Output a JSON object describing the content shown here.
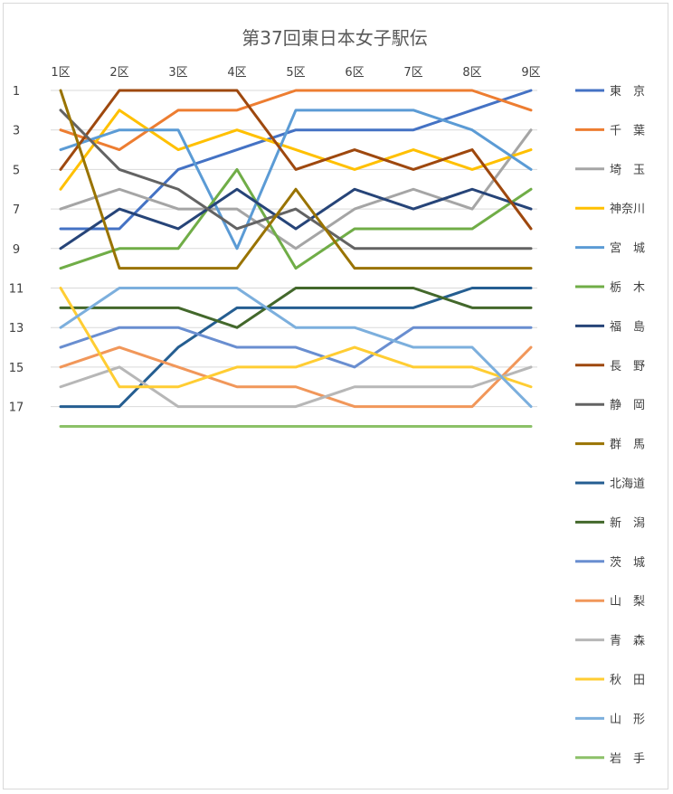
{
  "chart_data": {
    "type": "line",
    "title": "第37回東日本女子駅伝",
    "categories": [
      "1区",
      "2区",
      "3区",
      "4区",
      "5区",
      "6区",
      "7区",
      "8区",
      "9区"
    ],
    "y_ticks": [
      "1",
      "3",
      "5",
      "7",
      "9",
      "11",
      "13",
      "15",
      "17"
    ],
    "ylim": [
      1,
      18
    ],
    "y_reversed": true,
    "grid": true,
    "legend_position": "right",
    "series": [
      {
        "name": "東　京",
        "color": "#4472C4",
        "values": [
          8,
          8,
          5,
          4,
          3,
          3,
          3,
          2,
          1
        ]
      },
      {
        "name": "千　葉",
        "color": "#ED7D31",
        "values": [
          3,
          4,
          2,
          2,
          1,
          1,
          1,
          1,
          2
        ]
      },
      {
        "name": "埼　玉",
        "color": "#A5A5A5",
        "values": [
          7,
          6,
          7,
          7,
          9,
          7,
          6,
          7,
          3
        ]
      },
      {
        "name": "神奈川",
        "color": "#FFC000",
        "values": [
          6,
          2,
          4,
          3,
          4,
          5,
          4,
          5,
          4
        ]
      },
      {
        "name": "宮　城",
        "color": "#5B9BD5",
        "values": [
          4,
          3,
          3,
          9,
          2,
          2,
          2,
          3,
          5
        ]
      },
      {
        "name": "栃　木",
        "color": "#70AD47",
        "values": [
          10,
          9,
          9,
          5,
          10,
          8,
          8,
          8,
          6
        ]
      },
      {
        "name": "福　島",
        "color": "#264478",
        "values": [
          9,
          7,
          8,
          6,
          8,
          6,
          7,
          6,
          7
        ]
      },
      {
        "name": "長　野",
        "color": "#9E480E",
        "values": [
          5,
          1,
          1,
          1,
          5,
          4,
          5,
          4,
          8
        ]
      },
      {
        "name": "静　岡",
        "color": "#636363",
        "values": [
          2,
          5,
          6,
          8,
          7,
          9,
          9,
          9,
          9
        ]
      },
      {
        "name": "群　馬",
        "color": "#997300",
        "values": [
          1,
          10,
          10,
          10,
          6,
          10,
          10,
          10,
          10
        ]
      },
      {
        "name": "北海道",
        "color": "#255E91",
        "values": [
          17,
          17,
          14,
          12,
          12,
          12,
          12,
          11,
          11
        ]
      },
      {
        "name": "新　潟",
        "color": "#43682B",
        "values": [
          12,
          12,
          12,
          13,
          11,
          11,
          11,
          12,
          12
        ]
      },
      {
        "name": "茨　城",
        "color": "#698ED0",
        "values": [
          14,
          13,
          13,
          14,
          14,
          15,
          13,
          13,
          13
        ]
      },
      {
        "name": "山　梨",
        "color": "#F1975A",
        "values": [
          15,
          14,
          15,
          16,
          16,
          17,
          17,
          17,
          14
        ]
      },
      {
        "name": "青　森",
        "color": "#B7B7B7",
        "values": [
          16,
          15,
          17,
          17,
          17,
          16,
          16,
          16,
          15
        ]
      },
      {
        "name": "秋　田",
        "color": "#FFCD33",
        "values": [
          11,
          16,
          16,
          15,
          15,
          14,
          15,
          15,
          16
        ]
      },
      {
        "name": "山　形",
        "color": "#7CAFDD",
        "values": [
          13,
          11,
          11,
          11,
          13,
          13,
          14,
          14,
          17
        ]
      },
      {
        "name": "岩　手",
        "color": "#8CC168",
        "values": [
          18,
          18,
          18,
          18,
          18,
          18,
          18,
          18,
          18
        ]
      }
    ]
  }
}
